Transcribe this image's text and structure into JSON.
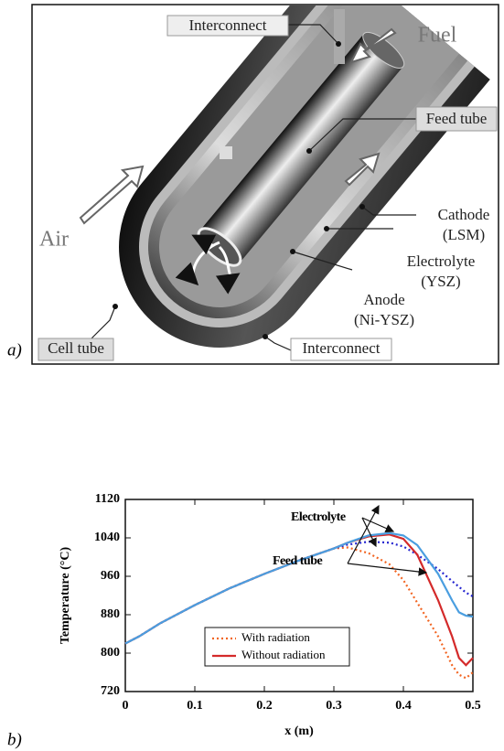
{
  "diagram": {
    "panel_label": "a)",
    "labels": {
      "interconnect_top": "Interconnect",
      "fuel": "Fuel",
      "feed_tube": "Feed tube",
      "air": "Air",
      "cathode": [
        "Cathode",
        "(LSM)"
      ],
      "electrolyte": [
        "Electrolyte",
        "(YSZ)"
      ],
      "anode": [
        "Anode",
        "(Ni-YSZ)"
      ],
      "cell_tube": "Cell tube",
      "interconnect_bottom": "Interconnect"
    }
  },
  "chart_data": {
    "type": "line",
    "panel_label": "b)",
    "x_label": "x (m)",
    "y_label": "Temperature (°C)",
    "x": [
      0,
      0.02,
      0.05,
      0.1,
      0.15,
      0.2,
      0.25,
      0.3,
      0.32,
      0.35,
      0.38,
      0.4,
      0.42,
      0.45,
      0.47,
      0.48,
      0.49,
      0.5
    ],
    "xlim": [
      0,
      0.5
    ],
    "xticks": [
      0,
      0.1,
      0.2,
      0.3,
      0.4,
      0.5
    ],
    "ylim": [
      720,
      1120
    ],
    "yticks": [
      720,
      800,
      880,
      960,
      1040,
      1120
    ],
    "annotations": [
      "Electrolyte",
      "Feed tube"
    ],
    "series": [
      {
        "name": "With radiation",
        "dash": "dotted",
        "lines": [
          {
            "color": "#f26522",
            "values": [
              820,
              835,
              862,
              900,
              935,
              965,
              993,
              1018,
              1020,
              1008,
              985,
              952,
              905,
              835,
              775,
              755,
              748,
              760
            ]
          },
          {
            "color": "#2626d0",
            "values": [
              820,
              835,
              862,
              900,
              935,
              965,
              993,
              1018,
              1026,
              1032,
              1030,
              1022,
              1005,
              975,
              950,
              938,
              926,
              918
            ]
          }
        ]
      },
      {
        "name": "Without radiation",
        "dash": "solid",
        "lines": [
          {
            "color": "#d42a2a",
            "values": [
              820,
              835,
              862,
              900,
              935,
              965,
              993,
              1018,
              1030,
              1043,
              1047,
              1038,
              1005,
              910,
              835,
              790,
              775,
              790
            ]
          },
          {
            "color": "#4a9ee0",
            "values": [
              820,
              835,
              862,
              900,
              935,
              965,
              993,
              1018,
              1030,
              1045,
              1050,
              1045,
              1025,
              965,
              910,
              885,
              878,
              876
            ]
          }
        ]
      }
    ]
  }
}
